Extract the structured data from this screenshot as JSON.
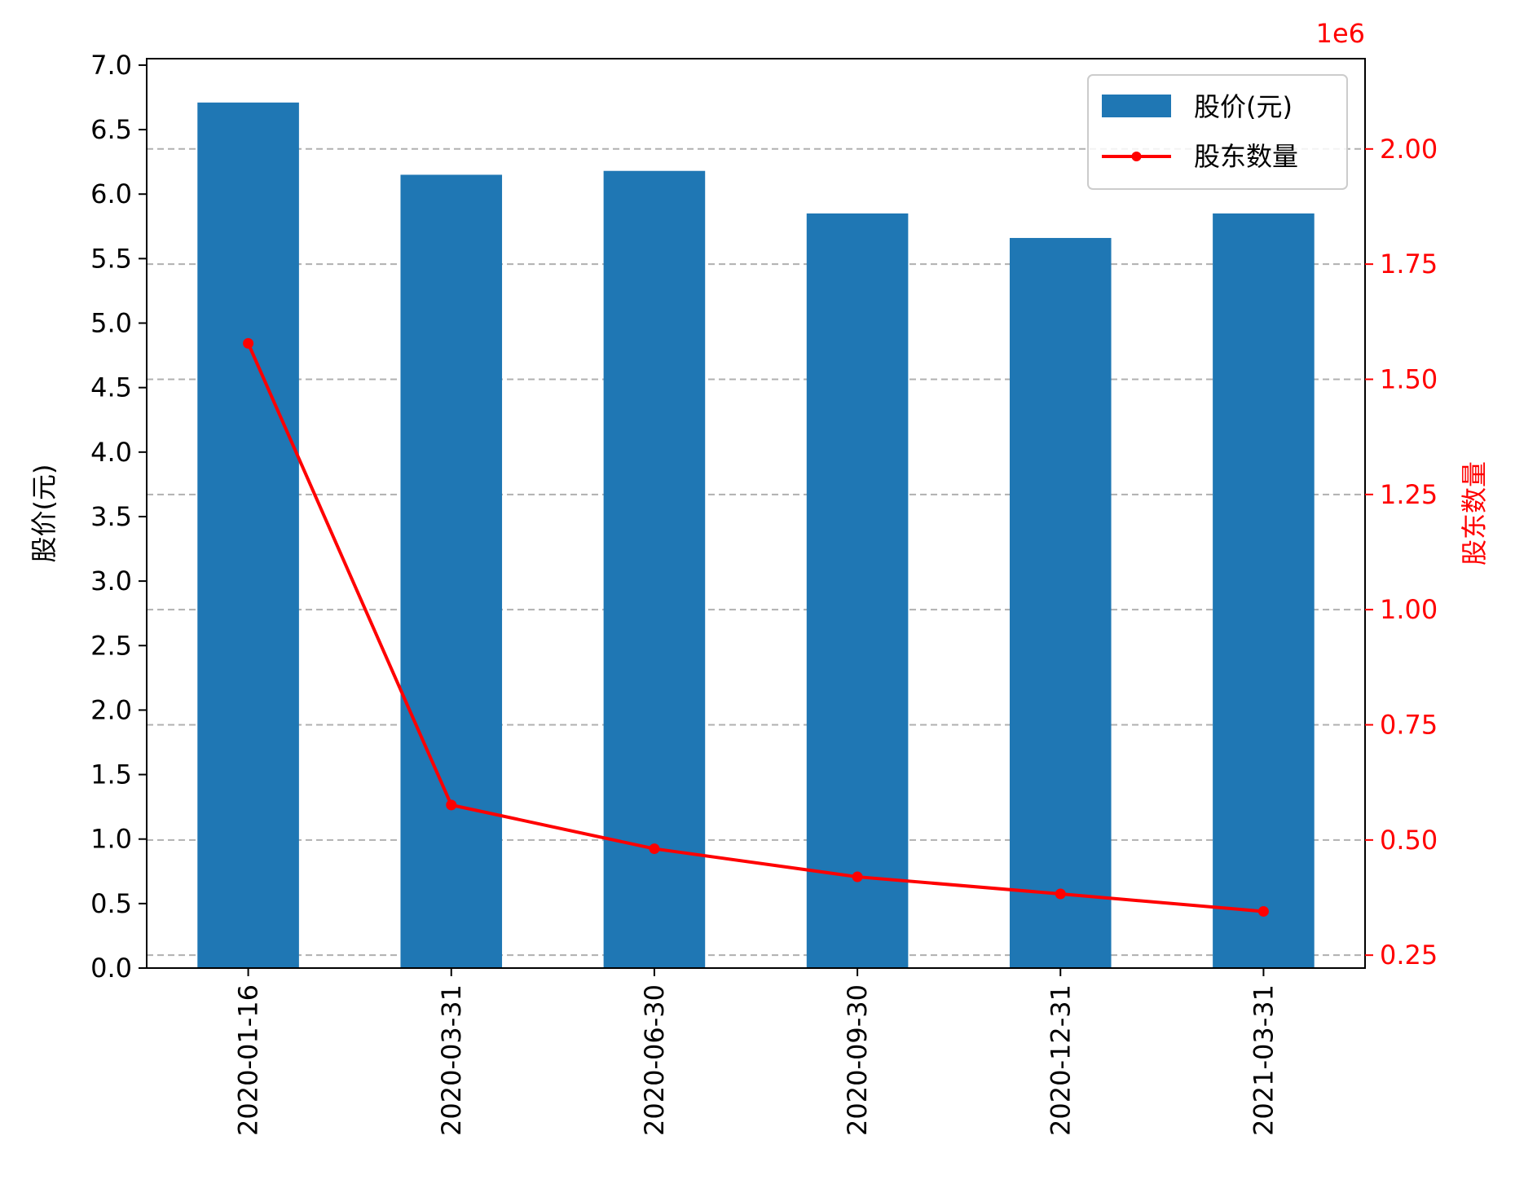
{
  "chart_data": {
    "type": "bar",
    "categories": [
      "2020-01-16",
      "2020-03-31",
      "2020-06-30",
      "2020-09-30",
      "2020-12-31",
      "2021-03-31"
    ],
    "series": [
      {
        "name": "股价(元)",
        "type": "bar",
        "axis": "left",
        "color": "#1f77b4",
        "values": [
          6.71,
          6.15,
          6.18,
          5.85,
          5.66,
          5.85
        ]
      },
      {
        "name": "股东数量",
        "type": "line",
        "axis": "right",
        "color": "#ff0000",
        "marker": "circle",
        "values": [
          1578000,
          576000,
          481000,
          420000,
          383000,
          345000
        ]
      }
    ],
    "title": "",
    "xlabel": "",
    "ylabel": "股价(元)",
    "y2label": "股东数量",
    "y2_offset_text": "1e6",
    "ylim": [
      0,
      7.05
    ],
    "y2lim": [
      0.222,
      2.196
    ],
    "yticks": [
      "0.0",
      "0.5",
      "1.0",
      "1.5",
      "2.0",
      "2.5",
      "3.0",
      "3.5",
      "4.0",
      "4.5",
      "5.0",
      "5.5",
      "6.0",
      "6.5",
      "7.0"
    ],
    "y2ticks": [
      "0.25",
      "0.50",
      "0.75",
      "1.00",
      "1.25",
      "1.50",
      "1.75",
      "2.00"
    ],
    "grid": "horizontal dashed, right axis",
    "legend_position": "top-right",
    "x_tick_rotation": "vertical"
  }
}
